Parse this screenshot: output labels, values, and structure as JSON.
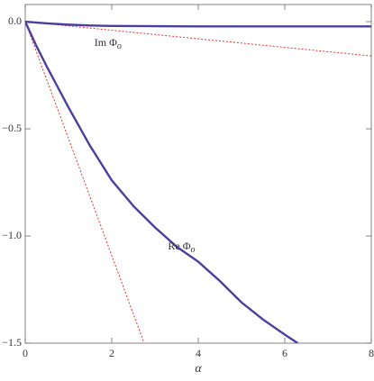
{
  "chart_data": {
    "type": "line",
    "x_label": "α",
    "xlim": [
      0,
      8
    ],
    "ylim": [
      -1.5,
      0.08
    ],
    "xticks": [
      0,
      2,
      4,
      6,
      8
    ],
    "yticks": [
      {
        "value": 0,
        "label": "0.0"
      },
      {
        "value": -0.5,
        "label": "−0.5"
      },
      {
        "value": -1.0,
        "label": "−1.0"
      },
      {
        "value": -1.5,
        "label": "−1.5"
      }
    ],
    "series": [
      {
        "color": "#4a3f9e",
        "style": "solid",
        "x": [
          0,
          0.25,
          0.5,
          1,
          1.5,
          2,
          2.5,
          3,
          3.5,
          4,
          4.5,
          5,
          5.5,
          6,
          6.3
        ],
        "values": [
          0,
          -0.11,
          -0.21,
          -0.4,
          -0.58,
          -0.74,
          -0.86,
          -0.96,
          -1.05,
          -1.12,
          -1.21,
          -1.31,
          -1.39,
          -1.46,
          -1.5
        ]
      },
      {
        "color": "#4a3f9e",
        "style": "solid",
        "x": [
          0,
          0.5,
          1,
          1.5,
          2,
          3,
          4,
          6,
          8
        ],
        "values": [
          0,
          -0.008,
          -0.014,
          -0.018,
          -0.02,
          -0.021,
          -0.022,
          -0.022,
          -0.022
        ]
      },
      {
        "color": "#e8302a",
        "style": "dotted",
        "x": [
          0,
          2.75
        ],
        "values": [
          0,
          -1.5
        ]
      },
      {
        "color": "#e8302a",
        "style": "dotted",
        "x": [
          0,
          8
        ],
        "values": [
          0,
          -0.16
        ]
      }
    ],
    "annotations": [
      {
        "text": "Im Φ",
        "sub": "o",
        "x": 1.6,
        "y": -0.1
      },
      {
        "text": "Re Φ",
        "sub": "o",
        "x": 3.3,
        "y": -1.05
      }
    ]
  }
}
